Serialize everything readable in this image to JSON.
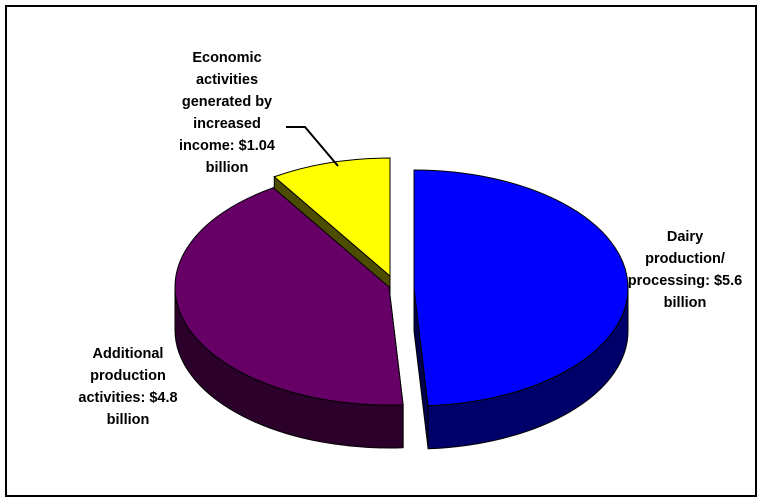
{
  "chart_data": {
    "type": "pie",
    "three_d": true,
    "exploded": true,
    "title": "",
    "legend": "none",
    "slices": [
      {
        "label_lines": [
          "Dairy",
          "production/",
          "processing: $5.6",
          "billion"
        ],
        "value": 5.6,
        "unit": "billion USD",
        "color": "#0000ff"
      },
      {
        "label_lines": [
          "Additional",
          "production",
          "activities: $4.8",
          "billion"
        ],
        "value": 4.8,
        "unit": "billion USD",
        "color": "#660066"
      },
      {
        "label_lines": [
          "Economic",
          "activities",
          "generated by",
          "increased",
          "income: $1.04",
          "billion"
        ],
        "value": 1.04,
        "unit": "billion USD",
        "color": "#ffff00"
      }
    ]
  }
}
